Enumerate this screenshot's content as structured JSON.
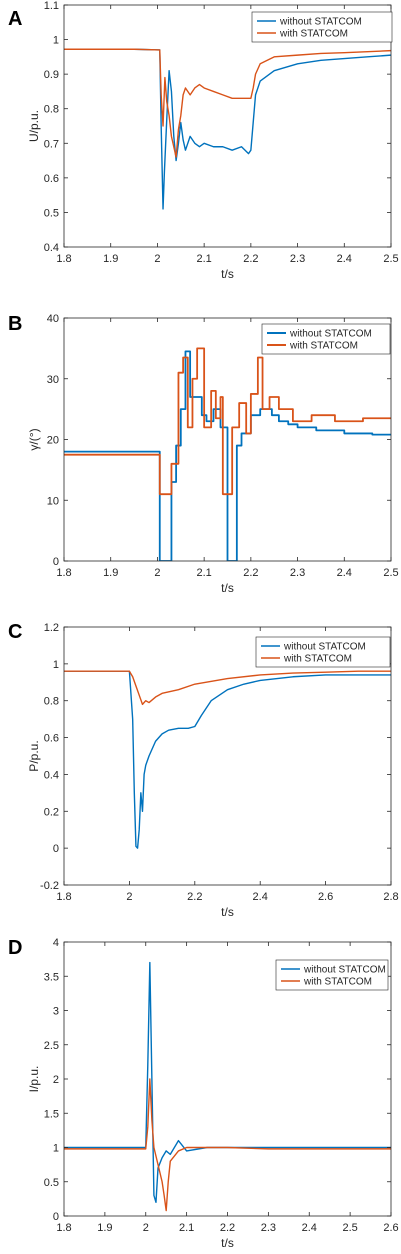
{
  "colors": {
    "without": "#0072BD",
    "with": "#D95319",
    "axis": "#262626"
  },
  "chart_data": [
    {
      "panel": "A",
      "type": "line",
      "xlabel": "t/s",
      "ylabel": "U/p.u.",
      "xlim": [
        1.8,
        2.5
      ],
      "ylim": [
        0.4,
        1.1
      ],
      "xticks": [
        "1.8",
        "1.9",
        "2",
        "2.1",
        "2.2",
        "2.3",
        "2.4",
        "2.5"
      ],
      "yticks": [
        "0.4",
        "0.5",
        "0.6",
        "0.7",
        "0.8",
        "0.9",
        "1",
        "1.1"
      ],
      "legend": "top-right",
      "series": [
        {
          "name": "without  STATCOM",
          "color": "#0072BD",
          "x": [
            1.8,
            1.95,
            2.005,
            2.008,
            2.012,
            2.015,
            2.02,
            2.025,
            2.03,
            2.035,
            2.04,
            2.045,
            2.05,
            2.055,
            2.06,
            2.07,
            2.08,
            2.09,
            2.1,
            2.12,
            2.14,
            2.16,
            2.18,
            2.195,
            2.2,
            2.205,
            2.21,
            2.22,
            2.25,
            2.3,
            2.35,
            2.4,
            2.45,
            2.5
          ],
          "y": [
            0.972,
            0.972,
            0.97,
            0.75,
            0.51,
            0.62,
            0.77,
            0.91,
            0.85,
            0.72,
            0.65,
            0.7,
            0.76,
            0.71,
            0.68,
            0.72,
            0.7,
            0.69,
            0.7,
            0.69,
            0.69,
            0.68,
            0.69,
            0.67,
            0.68,
            0.76,
            0.84,
            0.88,
            0.91,
            0.93,
            0.94,
            0.945,
            0.95,
            0.955
          ]
        },
        {
          "name": "with  STATCOM",
          "color": "#D95319",
          "x": [
            1.8,
            1.95,
            2.005,
            2.008,
            2.012,
            2.016,
            2.02,
            2.025,
            2.03,
            2.04,
            2.045,
            2.05,
            2.055,
            2.06,
            2.07,
            2.08,
            2.09,
            2.1,
            2.12,
            2.14,
            2.16,
            2.18,
            2.195,
            2.2,
            2.205,
            2.21,
            2.22,
            2.25,
            2.3,
            2.35,
            2.4,
            2.45,
            2.5
          ],
          "y": [
            0.972,
            0.972,
            0.97,
            0.84,
            0.75,
            0.89,
            0.82,
            0.78,
            0.72,
            0.66,
            0.74,
            0.78,
            0.84,
            0.86,
            0.84,
            0.86,
            0.87,
            0.86,
            0.85,
            0.84,
            0.83,
            0.83,
            0.83,
            0.83,
            0.86,
            0.9,
            0.93,
            0.95,
            0.955,
            0.96,
            0.962,
            0.965,
            0.968
          ]
        }
      ]
    },
    {
      "panel": "B",
      "type": "line",
      "xlabel": "t/s",
      "ylabel": "γ/(°)",
      "xlim": [
        1.8,
        2.5
      ],
      "ylim": [
        0,
        40
      ],
      "xticks": [
        "1.8",
        "1.9",
        "2",
        "2.1",
        "2.2",
        "2.3",
        "2.4",
        "2.5"
      ],
      "yticks": [
        "0",
        "10",
        "20",
        "30",
        "40"
      ],
      "legend": "top-right",
      "series": [
        {
          "name": "without  STATCOM",
          "color": "#0072BD",
          "x": [
            1.8,
            2.005,
            2.005,
            2.03,
            2.03,
            2.04,
            2.04,
            2.05,
            2.05,
            2.06,
            2.06,
            2.07,
            2.07,
            2.095,
            2.095,
            2.105,
            2.105,
            2.12,
            2.12,
            2.135,
            2.135,
            2.15,
            2.15,
            2.17,
            2.17,
            2.18,
            2.18,
            2.2,
            2.2,
            2.22,
            2.22,
            2.245,
            2.245,
            2.26,
            2.26,
            2.28,
            2.28,
            2.3,
            2.3,
            2.34,
            2.34,
            2.4,
            2.4,
            2.46,
            2.46,
            2.5
          ],
          "y": [
            18,
            18,
            0,
            0,
            13,
            13,
            19,
            19,
            25,
            25,
            34.5,
            34.5,
            27,
            27,
            24,
            24,
            23,
            23,
            25,
            25,
            22,
            22,
            0,
            0,
            19,
            19,
            21,
            21,
            24,
            24,
            25,
            25,
            24,
            24,
            23,
            23,
            22.5,
            22.5,
            22,
            22,
            21.5,
            21.5,
            21,
            21,
            20.8,
            20.8
          ]
        },
        {
          "name": "with  STATCOM",
          "color": "#D95319",
          "x": [
            1.8,
            2.005,
            2.005,
            2.03,
            2.03,
            2.045,
            2.045,
            2.055,
            2.055,
            2.065,
            2.065,
            2.075,
            2.075,
            2.085,
            2.085,
            2.1,
            2.1,
            2.115,
            2.115,
            2.125,
            2.125,
            2.135,
            2.135,
            2.14,
            2.14,
            2.16,
            2.16,
            2.175,
            2.175,
            2.19,
            2.19,
            2.2,
            2.2,
            2.215,
            2.215,
            2.225,
            2.225,
            2.24,
            2.24,
            2.26,
            2.26,
            2.29,
            2.29,
            2.33,
            2.33,
            2.38,
            2.38,
            2.44,
            2.44,
            2.5
          ],
          "y": [
            17.5,
            17.5,
            11,
            11,
            16,
            16,
            31,
            31,
            33.5,
            33.5,
            22,
            22,
            30,
            30,
            35,
            35,
            22,
            22,
            28,
            28,
            23.5,
            23.5,
            27,
            27,
            11,
            11,
            22,
            22,
            26,
            26,
            21,
            21,
            27.5,
            27.5,
            33.5,
            33.5,
            25,
            25,
            27,
            27,
            25,
            25,
            23,
            23,
            24,
            24,
            23,
            23,
            23.5,
            23.5
          ]
        }
      ]
    },
    {
      "panel": "C",
      "type": "line",
      "xlabel": "t/s",
      "ylabel": "P/p.u.",
      "xlim": [
        1.8,
        2.8
      ],
      "ylim": [
        -0.2,
        1.2
      ],
      "xticks": [
        "1.8",
        "2",
        "2.2",
        "2.4",
        "2.6",
        "2.8"
      ],
      "yticks": [
        "-0.2",
        "0",
        "0.2",
        "0.4",
        "0.6",
        "0.8",
        "1",
        "1.2"
      ],
      "legend": "top-right",
      "series": [
        {
          "name": "without  STATCOM",
          "color": "#0072BD",
          "x": [
            1.8,
            2.0,
            2.01,
            2.015,
            2.02,
            2.025,
            2.03,
            2.035,
            2.04,
            2.045,
            2.05,
            2.06,
            2.08,
            2.1,
            2.12,
            2.15,
            2.18,
            2.2,
            2.22,
            2.25,
            2.3,
            2.35,
            2.4,
            2.5,
            2.6,
            2.7,
            2.8
          ],
          "y": [
            0.96,
            0.96,
            0.7,
            0.3,
            0.01,
            0.0,
            0.1,
            0.3,
            0.2,
            0.4,
            0.45,
            0.5,
            0.58,
            0.62,
            0.64,
            0.65,
            0.65,
            0.66,
            0.72,
            0.8,
            0.86,
            0.89,
            0.91,
            0.93,
            0.94,
            0.94,
            0.94
          ]
        },
        {
          "name": "with  STATCOM",
          "color": "#D95319",
          "x": [
            1.8,
            2.0,
            2.01,
            2.02,
            2.03,
            2.04,
            2.05,
            2.06,
            2.08,
            2.1,
            2.15,
            2.2,
            2.3,
            2.4,
            2.5,
            2.6,
            2.7,
            2.8
          ],
          "y": [
            0.96,
            0.96,
            0.93,
            0.88,
            0.83,
            0.78,
            0.8,
            0.79,
            0.82,
            0.84,
            0.86,
            0.89,
            0.92,
            0.94,
            0.95,
            0.955,
            0.96,
            0.96
          ]
        }
      ]
    },
    {
      "panel": "D",
      "type": "line",
      "xlabel": "t/s",
      "ylabel": "I/p.u.",
      "xlim": [
        1.8,
        2.6
      ],
      "ylim": [
        0,
        4
      ],
      "xticks": [
        "1.8",
        "1.9",
        "2",
        "2.1",
        "2.2",
        "2.3",
        "2.4",
        "2.5",
        "2.6"
      ],
      "yticks": [
        "0",
        "0.5",
        "1",
        "1.5",
        "2",
        "2.5",
        "3",
        "3.5",
        "4"
      ],
      "legend": "top-right",
      "series": [
        {
          "name": "without  STATCOM",
          "color": "#0072BD",
          "x": [
            1.8,
            2.0,
            2.005,
            2.01,
            2.015,
            2.02,
            2.025,
            2.03,
            2.04,
            2.05,
            2.06,
            2.08,
            2.1,
            2.15,
            2.2,
            2.3,
            2.4,
            2.5,
            2.6
          ],
          "y": [
            1.0,
            1.0,
            2.2,
            3.7,
            2.0,
            0.3,
            0.2,
            0.7,
            0.85,
            0.95,
            0.9,
            1.1,
            0.95,
            1.0,
            1.0,
            1.0,
            1.0,
            1.0,
            1.0
          ]
        },
        {
          "name": "with  STATCOM",
          "color": "#D95319",
          "x": [
            1.8,
            2.0,
            2.005,
            2.01,
            2.015,
            2.02,
            2.03,
            2.04,
            2.045,
            2.05,
            2.055,
            2.06,
            2.08,
            2.1,
            2.15,
            2.2,
            2.3,
            2.4,
            2.5,
            2.6
          ],
          "y": [
            0.98,
            0.98,
            1.3,
            2.0,
            1.4,
            1.0,
            0.75,
            0.5,
            0.3,
            0.08,
            0.5,
            0.8,
            0.95,
            1.0,
            1.0,
            1.0,
            0.98,
            0.98,
            0.98,
            0.98
          ]
        }
      ]
    }
  ]
}
